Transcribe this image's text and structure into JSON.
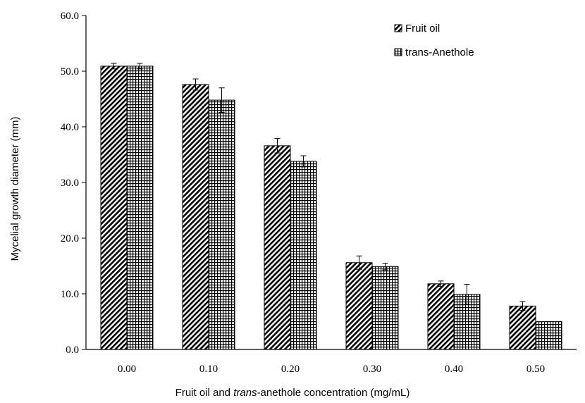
{
  "chart_data": {
    "type": "bar",
    "title": "",
    "ylabel": "Mycelial growth diameter (mm)",
    "xlabel": {
      "part1": "Fruit oil and ",
      "part2": "trans",
      "part3": "-anethole concentration (mg/mL)"
    },
    "ylim": [
      0,
      60
    ],
    "yticks": [
      "0.0",
      "10.0",
      "20.0",
      "30.0",
      "40.0",
      "50.0",
      "60.0"
    ],
    "categories": [
      "0.00",
      "0.10",
      "0.20",
      "0.30",
      "0.40",
      "0.50"
    ],
    "legend_position": "top-right",
    "series": [
      {
        "name": "Fruit oil",
        "pattern": "diagonal-hatch",
        "values": [
          50.9,
          47.6,
          36.6,
          15.6,
          11.8,
          7.8
        ],
        "errors": [
          0.5,
          1.0,
          1.3,
          1.2,
          0.5,
          0.8
        ]
      },
      {
        "name": "trans-Anethole",
        "pattern": "grid",
        "values": [
          50.9,
          44.8,
          33.8,
          14.9,
          9.9,
          5.0
        ],
        "errors": [
          0.5,
          2.2,
          1.0,
          0.6,
          1.8,
          0.0
        ]
      }
    ]
  }
}
